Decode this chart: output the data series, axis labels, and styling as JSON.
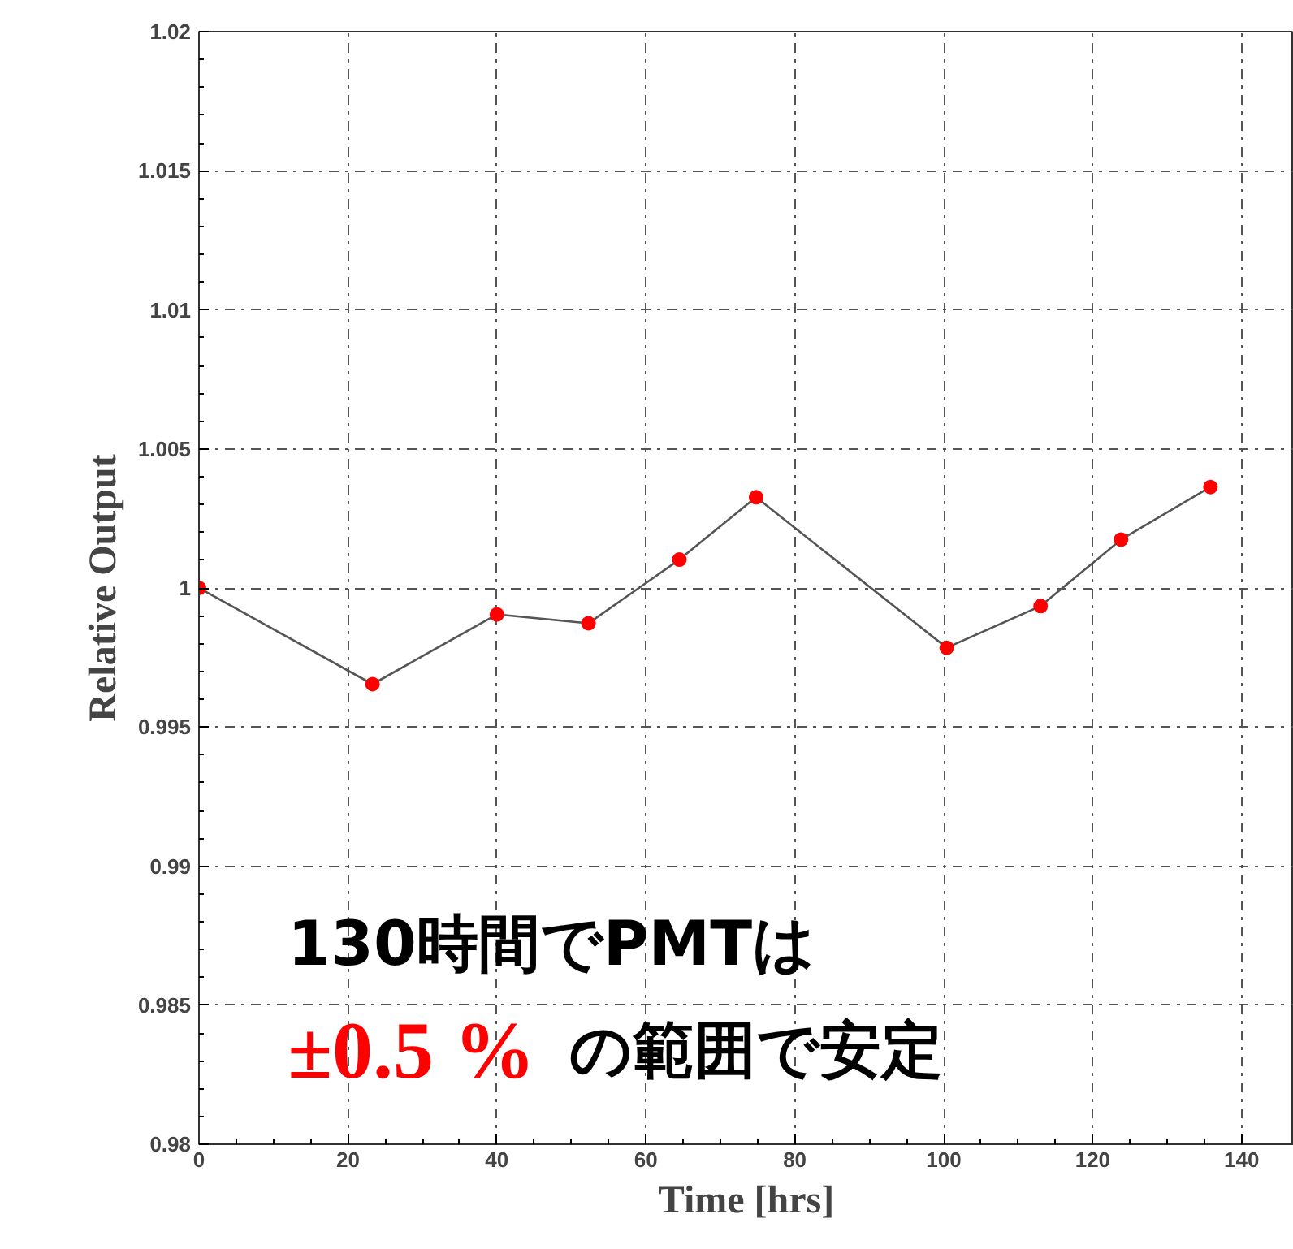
{
  "chart_data": {
    "type": "line",
    "xlabel": "Time [hrs]",
    "ylabel": "Relative Output",
    "x": [
      0,
      23.3,
      40,
      52.3,
      64.5,
      74.8,
      100.4,
      113.0,
      123.8,
      135.8
    ],
    "series": [
      {
        "color": "#ff0000",
        "values": [
          1.0,
          0.99654,
          0.99905,
          0.99873,
          1.00102,
          1.00326,
          0.99785,
          0.99935,
          1.00174,
          1.00363
        ]
      }
    ],
    "xlim": [
      0,
      147
    ],
    "ylim": [
      0.98,
      1.02
    ],
    "xticks": [
      0,
      20,
      40,
      60,
      80,
      100,
      120,
      140
    ],
    "yticks": [
      0.98,
      0.985,
      0.99,
      0.995,
      1,
      1.005,
      1.01,
      1.015,
      1.02
    ],
    "grid": true,
    "marker": "circle",
    "line_style": "solid",
    "annotations": [
      "130時間でPMTは",
      "±0.5 %",
      "の範囲で安定"
    ]
  }
}
